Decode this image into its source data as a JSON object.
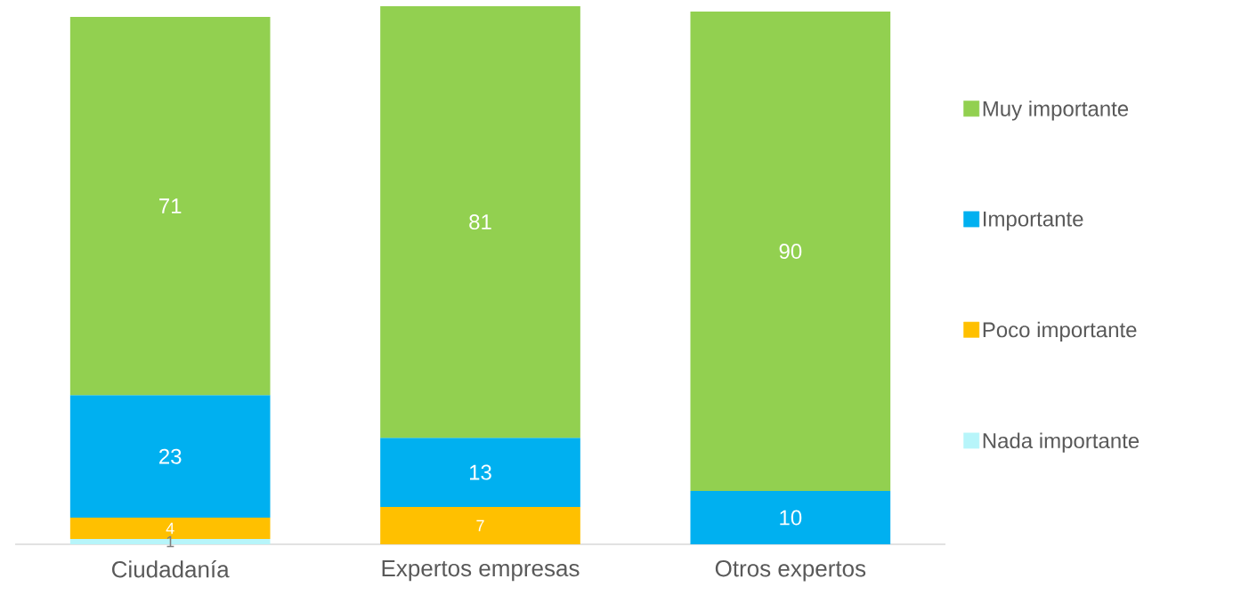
{
  "chart_data": {
    "type": "bar",
    "stacked": true,
    "categories": [
      "Ciudadanía",
      "Expertos empresas",
      "Otros expertos"
    ],
    "series": [
      {
        "name": "Nada importante",
        "color": "#b7f5fa",
        "values": [
          1,
          null,
          null
        ]
      },
      {
        "name": "Poco importante",
        "color": "#ffc000",
        "values": [
          4,
          7,
          null
        ]
      },
      {
        "name": "Importante",
        "color": "#00b0f0",
        "values": [
          23,
          13,
          10
        ]
      },
      {
        "name": "Muy importante",
        "color": "#92d050",
        "values": [
          71,
          81,
          90
        ]
      }
    ],
    "data_labels": true,
    "legend": "right"
  }
}
